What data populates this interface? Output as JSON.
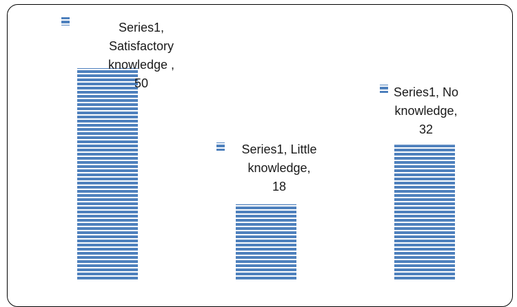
{
  "chart_data": {
    "type": "bar",
    "categories": [
      "Satisfactory knowledge",
      "Little knowledge",
      "No knowledge"
    ],
    "series": [
      {
        "name": "Series1",
        "values": [
          50,
          18,
          32
        ]
      }
    ],
    "data_labels": [
      [
        "Series1,",
        "Satisfactory",
        "knowledge ,",
        "50"
      ],
      [
        "Series1, Little",
        "knowledge,",
        "18"
      ],
      [
        "Series1, No",
        "knowledge,",
        "32"
      ]
    ],
    "ylim": [
      0,
      50
    ],
    "grid": false,
    "bar_color": "#4f81bd",
    "stripe_color": "#ffffff"
  }
}
